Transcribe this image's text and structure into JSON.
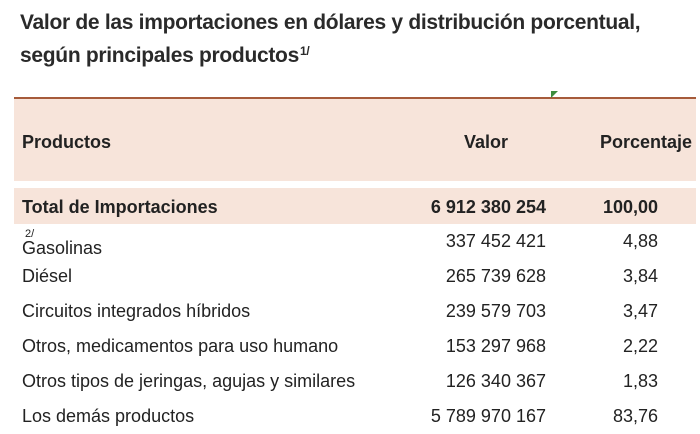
{
  "title": {
    "line1": "Valor de las importaciones en dólares y distribución porcentual,",
    "line2": "según principales productos",
    "footnote": "1/"
  },
  "table": {
    "headers": {
      "product": "Productos",
      "value": "Valor",
      "percent": "Porcentaje"
    },
    "total": {
      "product": "Total de Importaciones",
      "value": "6 912 380 254",
      "percent": "100,00"
    },
    "rows": [
      {
        "product": "Gasolinas",
        "note": "2/",
        "value": "337 452 421",
        "percent": "4,88"
      },
      {
        "product": "Diésel",
        "note": "",
        "value": "265 739 628",
        "percent": "3,84"
      },
      {
        "product": "Circuitos integrados híbridos",
        "note": "",
        "value": "239 579 703",
        "percent": "3,47"
      },
      {
        "product": "Otros, medicamentos para uso humano",
        "note": "",
        "value": "153 297 968",
        "percent": "2,22"
      },
      {
        "product": "Otros tipos de jeringas, agujas y similares",
        "note": "",
        "value": "126 340 367",
        "percent": "1,83"
      },
      {
        "product": "Los demás productos",
        "note": "",
        "value": "5 789 970 167",
        "percent": "83,76"
      }
    ]
  },
  "colors": {
    "header_fill": "#f7e4da",
    "top_rule": "#a65b3a",
    "comment_marker": "#3d8c3d"
  }
}
